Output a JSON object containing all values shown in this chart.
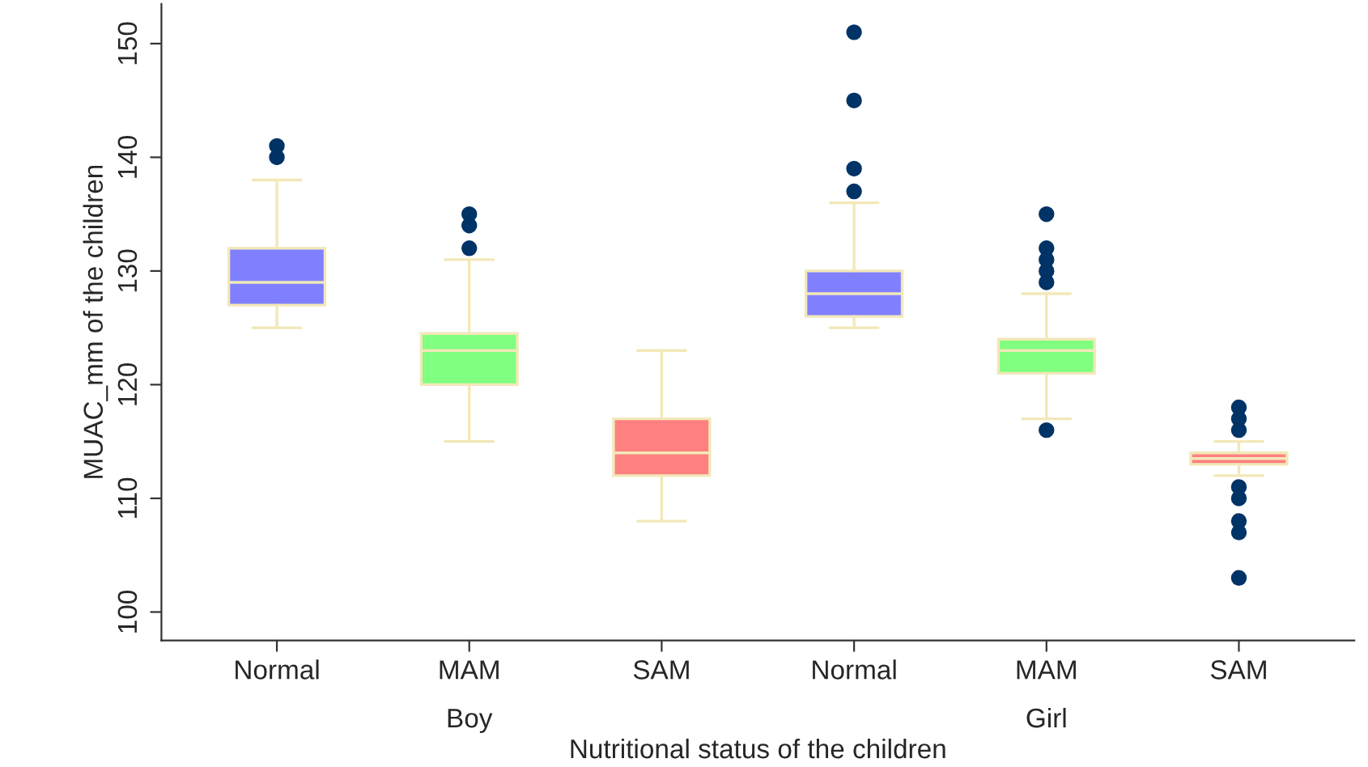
{
  "chart_data": {
    "type": "box",
    "xlabel": "Nutritional status of the children",
    "ylabel": "MUAC_mm of the children",
    "categories": [
      "Normal",
      "MAM",
      "SAM",
      "Normal",
      "MAM",
      "SAM"
    ],
    "colors": [
      "#8080ff",
      "#80ff80",
      "#ff8080",
      "#8080ff",
      "#80ff80",
      "#ff8080"
    ],
    "boxes": [
      {
        "low": 125,
        "q1": 127,
        "median": 129,
        "q3": 132,
        "high": 138,
        "outliers": [
          140,
          141
        ]
      },
      {
        "low": 115,
        "q1": 120,
        "median": 123,
        "q3": 124.5,
        "high": 131,
        "outliers": [
          132,
          134,
          135
        ]
      },
      {
        "low": 108,
        "q1": 112,
        "median": 114,
        "q3": 117,
        "high": 123
      },
      {
        "low": 125,
        "q1": 126,
        "median": 128,
        "q3": 130,
        "high": 136,
        "outliers": [
          137,
          139,
          145,
          151
        ]
      },
      {
        "low": 117,
        "q1": 121,
        "median": 123,
        "q3": 124,
        "high": 128,
        "outliers": [
          116,
          129,
          130,
          131,
          132,
          135
        ]
      },
      {
        "low": 112,
        "q1": 113,
        "median": 113.5,
        "q3": 114,
        "high": 115,
        "outliers": [
          103,
          107,
          108,
          110,
          111,
          116,
          117,
          118
        ]
      }
    ],
    "annotations": [
      "Boy",
      "Girl"
    ],
    "ylim": [
      97.5,
      153.5
    ],
    "yticks": [
      100,
      110,
      120,
      130,
      140,
      150
    ],
    "grid": false
  }
}
